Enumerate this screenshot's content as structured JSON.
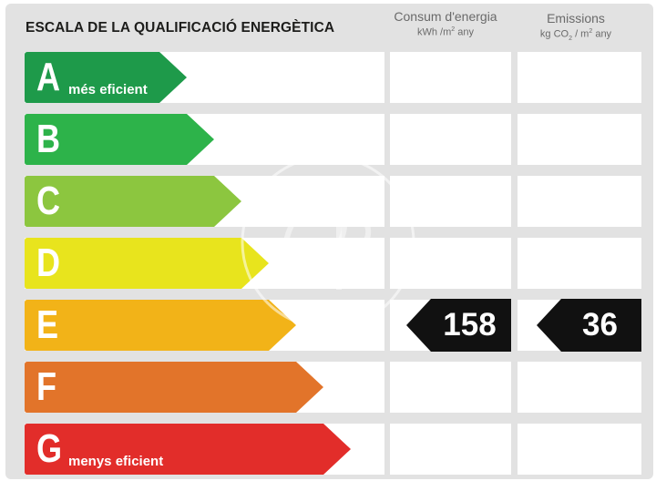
{
  "title": "ESCALA DE LA QUALIFICACIÓ ENERGÈTICA",
  "columns": {
    "energy": {
      "label": "Consum d'energia",
      "unit_prefix": "kWh /m",
      "unit_exp": "2",
      "unit_suffix": " any"
    },
    "emissions": {
      "label": "Emissions",
      "unit_prefix": "kg CO",
      "unit_sub": "2",
      "unit_mid": " / m",
      "unit_exp": "2",
      "unit_suffix": " any"
    }
  },
  "grades": [
    {
      "letter": "A",
      "caption": "més eficient",
      "color": "#1e9a4a"
    },
    {
      "letter": "B",
      "caption": "",
      "color": "#2db34a"
    },
    {
      "letter": "C",
      "caption": "",
      "color": "#8cc63f"
    },
    {
      "letter": "D",
      "caption": "",
      "color": "#e8e41d"
    },
    {
      "letter": "E",
      "caption": "",
      "color": "#f2b318"
    },
    {
      "letter": "F",
      "caption": "",
      "color": "#e2742a"
    },
    {
      "letter": "G",
      "caption": "menys eficient",
      "color": "#e22d2a"
    }
  ],
  "rating": {
    "grade": "E",
    "energy_value": "158",
    "emissions_value": "36"
  },
  "colors": {
    "badge": "#111111",
    "panel": "#e2e2e2"
  }
}
